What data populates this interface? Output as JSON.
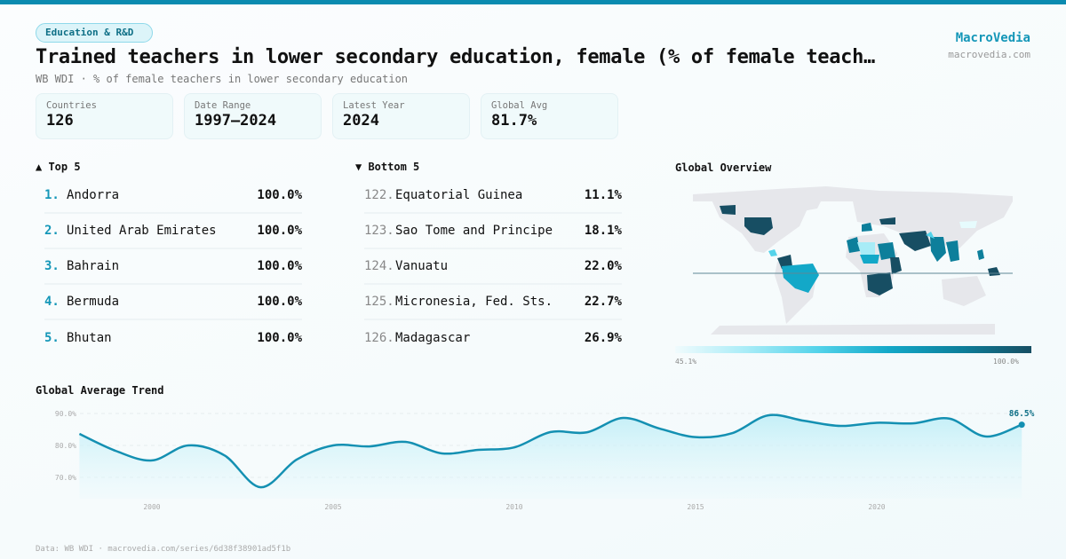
{
  "header": {
    "category": "Education & R&D",
    "title": "Trained teachers in lower secondary education, female (% of female teach…",
    "subtitle": "WB WDI · % of female teachers in lower secondary education",
    "brand_name": "MacroVedia",
    "brand_url": "macrovedia.com"
  },
  "stats": [
    {
      "label": "Countries",
      "value": "126"
    },
    {
      "label": "Date Range",
      "value": "1997–2024"
    },
    {
      "label": "Latest Year",
      "value": "2024"
    },
    {
      "label": "Global Avg",
      "value": "81.7%"
    }
  ],
  "top": {
    "title": "▲ Top 5",
    "rows": [
      {
        "rank": "1.",
        "country": "Andorra",
        "value": "100.0%"
      },
      {
        "rank": "2.",
        "country": "United Arab Emirates",
        "value": "100.0%"
      },
      {
        "rank": "3.",
        "country": "Bahrain",
        "value": "100.0%"
      },
      {
        "rank": "4.",
        "country": "Bermuda",
        "value": "100.0%"
      },
      {
        "rank": "5.",
        "country": "Bhutan",
        "value": "100.0%"
      }
    ]
  },
  "bottom": {
    "title": "▼ Bottom 5",
    "rows": [
      {
        "rank": "122.",
        "country": "Equatorial Guinea",
        "value": "11.1%"
      },
      {
        "rank": "123.",
        "country": "Sao Tome and Principe",
        "value": "18.1%"
      },
      {
        "rank": "124.",
        "country": "Vanuatu",
        "value": "22.0%"
      },
      {
        "rank": "125.",
        "country": "Micronesia, Fed. Sts.",
        "value": "22.7%"
      },
      {
        "rank": "126.",
        "country": "Madagascar",
        "value": "26.9%"
      }
    ]
  },
  "map": {
    "title": "Global Overview",
    "legend_min": "45.1%",
    "legend_max": "100.0%",
    "colors": {
      "nodata": "#e6e7eb",
      "low": "#a8ecf7",
      "mid": "#13a8c8",
      "high": "#0d7f9b",
      "max": "#174e63"
    }
  },
  "trend": {
    "title": "Global Average Trend",
    "last_label": "86.5%",
    "line_color": "#1490b2"
  },
  "footer": "Data: WB WDI · macrovedia.com/series/6d38f38901ad5f1b",
  "chart_data": {
    "type": "line",
    "title": "Global Average Trend",
    "xlabel": "",
    "ylabel": "",
    "x": [
      1998,
      1999,
      2000,
      2001,
      2002,
      2003,
      2004,
      2005,
      2006,
      2007,
      2008,
      2009,
      2010,
      2011,
      2012,
      2013,
      2014,
      2015,
      2016,
      2017,
      2018,
      2019,
      2020,
      2021,
      2022,
      2023,
      2024
    ],
    "values": [
      83.6,
      78.3,
      75.3,
      80.0,
      76.9,
      66.9,
      75.6,
      80.0,
      79.7,
      81.1,
      77.5,
      78.6,
      79.4,
      84.2,
      84.1,
      88.6,
      85.3,
      82.6,
      83.8,
      89.4,
      87.7,
      86.1,
      87.1,
      86.9,
      88.4,
      82.8,
      86.5
    ],
    "y_ticks": [
      "70.0%",
      "80.0%",
      "90.0%"
    ],
    "x_ticks": [
      "2000",
      "2005",
      "2010",
      "2015",
      "2020"
    ],
    "ylim": [
      64,
      92
    ],
    "grid": true,
    "annotation": "86.5%"
  }
}
